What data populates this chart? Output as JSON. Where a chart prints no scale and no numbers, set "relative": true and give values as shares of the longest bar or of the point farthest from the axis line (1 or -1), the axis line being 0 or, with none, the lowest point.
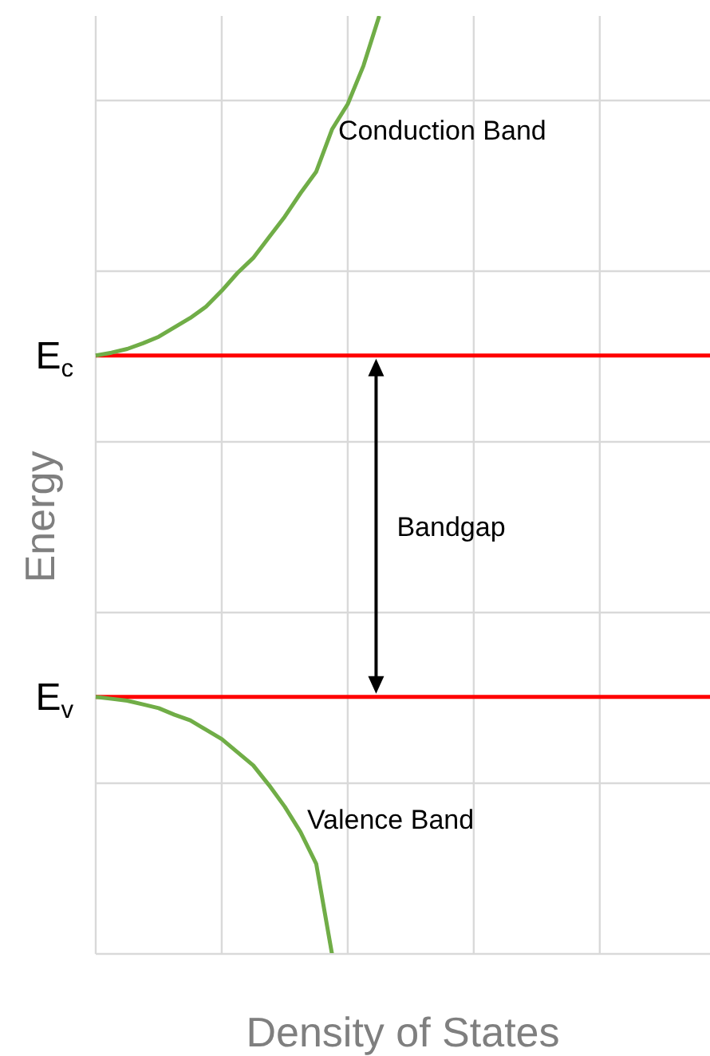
{
  "chart_data": {
    "type": "line",
    "relative": true,
    "xlabel": "Density of States",
    "ylabel": "Energy",
    "categories": [
      null,
      null,
      null,
      null,
      null,
      null,
      null,
      null,
      null,
      null,
      null,
      null,
      null,
      null,
      null,
      null,
      null,
      null,
      null,
      null,
      null,
      null,
      null,
      null,
      null,
      null,
      null,
      null,
      null,
      null,
      null,
      null,
      null,
      null,
      null,
      null,
      null,
      null,
      null,
      null
    ],
    "grid": true,
    "series": [
      {
        "name": "Conduction Band",
        "color": "#70ad47",
        "values": [
          0.638,
          0.641,
          0.645,
          0.651,
          0.658,
          0.668,
          0.678,
          0.69,
          0.707,
          0.726,
          0.742,
          0.764,
          0.786,
          0.811,
          0.834,
          0.879,
          0.906,
          0.947,
          1,
          null,
          null,
          null,
          null,
          null,
          null,
          null,
          null,
          null,
          null,
          null,
          null,
          null,
          null,
          null,
          null,
          null,
          null,
          null,
          null,
          null
        ]
      },
      {
        "name": "Valence Band",
        "color": "#70ad47",
        "values": [
          0.274,
          0.272,
          0.27,
          0.266,
          0.262,
          0.255,
          0.249,
          0.239,
          0.229,
          0.215,
          0.201,
          0.18,
          0.157,
          0.13,
          0.096,
          0,
          null,
          null,
          null,
          null,
          null,
          null,
          null,
          null,
          null,
          null,
          null,
          null,
          null,
          null,
          null,
          null,
          null,
          null,
          null,
          null,
          null,
          null,
          null,
          null
        ]
      }
    ],
    "ref_lines": [
      {
        "axis": "y",
        "value": 0.638,
        "label": "E$_{c}$",
        "color": "#ff0000"
      },
      {
        "axis": "y",
        "value": 0.274,
        "label": "E$_{v}$",
        "color": "#ff0000"
      }
    ],
    "annotations": [
      "Bandgap"
    ]
  }
}
